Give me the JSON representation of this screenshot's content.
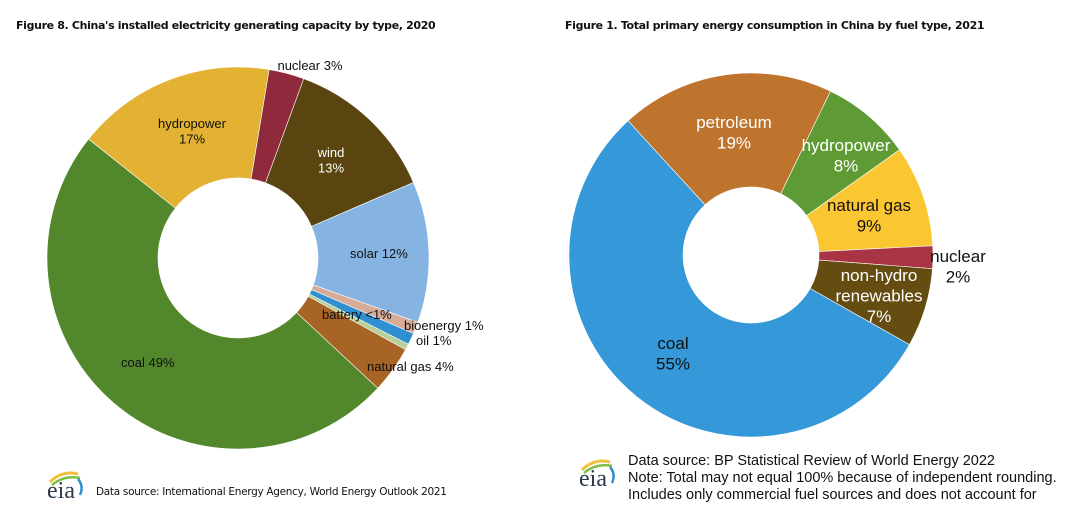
{
  "chart_data": [
    {
      "type": "pie",
      "subtype": "donut",
      "title": "Figure 8. China's installed electricity generating capacity by type, 2020",
      "categories": [
        "hydropower",
        "nuclear",
        "wind",
        "solar",
        "bioenergy",
        "oil",
        "battery",
        "natural gas",
        "coal"
      ],
      "values": [
        17,
        3,
        13,
        12,
        1,
        1,
        0.5,
        4,
        49
      ],
      "labels": [
        "hydropower\n17%",
        "nuclear 3%",
        "wind\n13%",
        "solar 12%",
        "bioenergy 1%",
        "oil 1%",
        "battery <1%",
        "natural gas 4%",
        "coal 49%"
      ],
      "colors": [
        "#e3b232",
        "#8e2a3b",
        "#5a4510",
        "#86b4e2",
        "#d7ab95",
        "#2f8fd0",
        "#b9cf9a",
        "#a86424",
        "#52872b"
      ],
      "label_colors": [
        "#111111",
        "#111111",
        "#ffffff",
        "#111111",
        "#111111",
        "#111111",
        "#111111",
        "#111111",
        "#111111"
      ],
      "source": "Data source: International Energy Agency, World Energy Outlook 2021"
    },
    {
      "type": "pie",
      "subtype": "donut",
      "title": "Figure 1. Total primary energy consumption in China by fuel type, 2021",
      "categories": [
        "petroleum",
        "hydropower",
        "natural gas",
        "nuclear",
        "non-hydro renewables",
        "coal"
      ],
      "values": [
        19,
        8,
        9,
        2,
        7,
        55
      ],
      "labels": [
        "petroleum\n19%",
        "hydropower\n8%",
        "natural gas\n9%",
        "nuclear\n2%",
        "non-hydro\nrenewables\n7%",
        "coal\n55%"
      ],
      "colors": [
        "#bf742d",
        "#5e9b35",
        "#fac632",
        "#a83444",
        "#654d12",
        "#3598d8"
      ],
      "label_colors": [
        "#ffffff",
        "#ffffff",
        "#111111",
        "#111111",
        "#ffffff",
        "#111111"
      ],
      "source_lines": [
        "Data source: BP Statistical Review of World Energy 2022",
        "Note: Total may not equal 100% because of independent rounding.",
        "Includes only commercial fuel sources and does not account for"
      ]
    }
  ],
  "logo": {
    "text": "eia",
    "name": "eia-logo"
  }
}
